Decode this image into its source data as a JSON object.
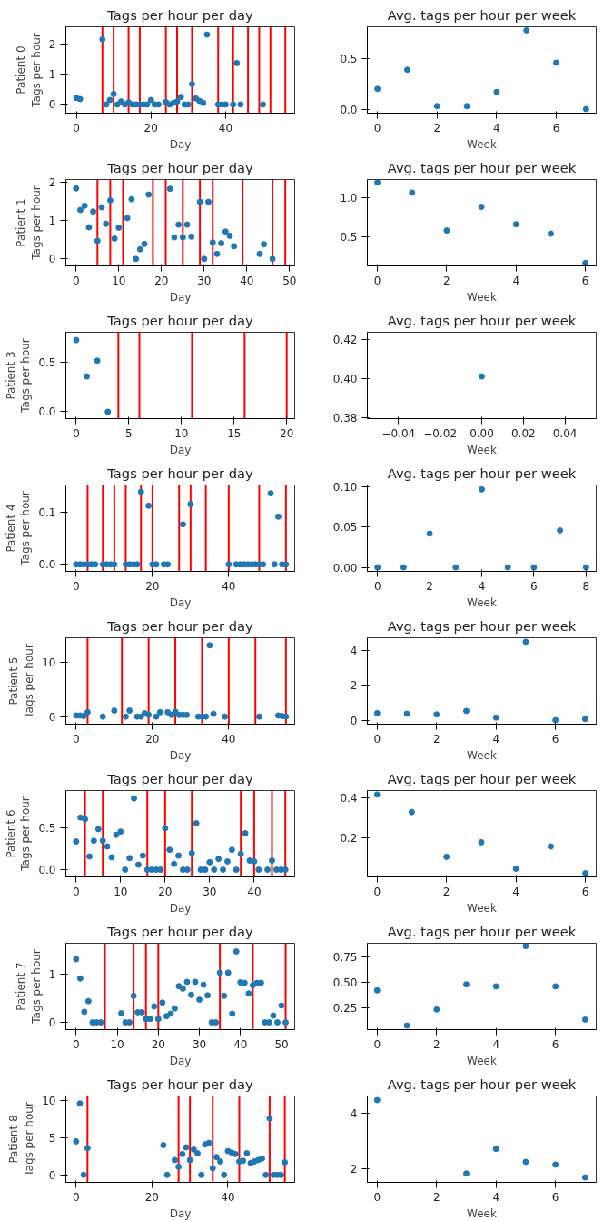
{
  "chart_data": [
    {
      "type": "scatter",
      "title": "Tags per hour per day",
      "xlabel": "Day",
      "ylabel": "Patient 0\nTags per hour",
      "color": "#1f77b4",
      "marker": "circle",
      "xlim": [
        -2.8,
        58.5
      ],
      "ylim": [
        -0.29,
        2.59
      ],
      "xticks": [
        0,
        20,
        40
      ],
      "yticks": [
        0,
        1,
        2
      ],
      "x": [
        0,
        1,
        7,
        8,
        9,
        10,
        11,
        12,
        13,
        14,
        15,
        16,
        17,
        18,
        19,
        20,
        21,
        22,
        24,
        25,
        26,
        27,
        28,
        29,
        30,
        31,
        32,
        33,
        34,
        35,
        38,
        39,
        40,
        42,
        43,
        44,
        50
      ],
      "values": [
        0.22,
        0.18,
        2.17,
        0,
        0.15,
        0.35,
        0,
        0.1,
        0,
        0.07,
        0,
        0,
        0,
        0,
        0,
        0.15,
        0,
        0,
        0.08,
        0,
        0.05,
        0.1,
        0.25,
        0,
        0,
        0.68,
        0.2,
        0.12,
        0.05,
        2.33,
        0,
        0,
        0,
        0,
        1.38,
        0,
        0
      ],
      "ref_lines": [
        {
          "axis": "x",
          "value": 7,
          "color": "#ff0000"
        },
        {
          "axis": "x",
          "value": 10,
          "color": "#ff0000"
        },
        {
          "axis": "x",
          "value": 14,
          "color": "#ff0000"
        },
        {
          "axis": "x",
          "value": 17,
          "color": "#ff0000"
        },
        {
          "axis": "x",
          "value": 24,
          "color": "#ff0000"
        },
        {
          "axis": "x",
          "value": 27,
          "color": "#ff0000"
        },
        {
          "axis": "x",
          "value": 31,
          "color": "#ff0000"
        },
        {
          "axis": "x",
          "value": 38,
          "color": "#ff0000"
        },
        {
          "axis": "x",
          "value": 42,
          "color": "#ff0000"
        },
        {
          "axis": "x",
          "value": 46,
          "color": "#ff0000"
        },
        {
          "axis": "x",
          "value": 49,
          "color": "#ff0000"
        },
        {
          "axis": "x",
          "value": 52,
          "color": "#ff0000"
        },
        {
          "axis": "x",
          "value": 56,
          "color": "#ff0000"
        }
      ]
    },
    {
      "type": "scatter",
      "title": "Avg. tags per hour per week",
      "xlabel": "Week",
      "color": "#1f77b4",
      "marker": "circle",
      "xlim": [
        -0.34,
        7.34
      ],
      "ylim": [
        -0.04,
        0.815
      ],
      "xticks": [
        0,
        2,
        4,
        6
      ],
      "yticks": [
        {
          "value": 0,
          "label": "0.0"
        },
        {
          "value": 0.5,
          "label": "0.5"
        }
      ],
      "x": [
        0,
        1,
        2,
        3,
        4,
        5,
        6,
        7
      ],
      "values": [
        0.2,
        0.39,
        0.03,
        0.03,
        0.17,
        0.78,
        0.46,
        0.0
      ]
    },
    {
      "type": "scatter",
      "title": "Tags per hour per day",
      "xlabel": "Day",
      "ylabel": "Patient 1\nTags per hour",
      "color": "#1f77b4",
      "marker": "circle",
      "xlim": [
        -2.4,
        51.2
      ],
      "ylim": [
        -0.18,
        2.06
      ],
      "xticks": [
        0,
        10,
        20,
        30,
        40,
        50
      ],
      "yticks": [
        0,
        1,
        2
      ],
      "x": [
        0,
        1,
        2,
        3,
        4,
        5,
        6,
        7,
        8,
        9,
        10,
        12,
        13,
        14,
        15,
        16,
        17,
        22,
        23,
        24,
        25,
        26,
        27,
        29,
        30,
        31,
        32,
        33,
        34,
        35,
        36,
        37,
        43,
        44,
        46
      ],
      "values": [
        1.83,
        1.27,
        1.38,
        0.82,
        1.23,
        0.47,
        1.34,
        0.91,
        1.52,
        0.53,
        0.81,
        1.06,
        1.55,
        0,
        0.25,
        0.39,
        1.67,
        1.82,
        0.56,
        0.89,
        0.56,
        0.89,
        0.58,
        1.48,
        0,
        1.48,
        0.43,
        0.13,
        0.41,
        0.71,
        0.6,
        0.33,
        0.13,
        0.38,
        0
      ],
      "ref_lines": [
        {
          "axis": "x",
          "value": 5,
          "color": "#ff0000"
        },
        {
          "axis": "x",
          "value": 8,
          "color": "#ff0000"
        },
        {
          "axis": "x",
          "value": 11,
          "color": "#ff0000"
        },
        {
          "axis": "x",
          "value": 18,
          "color": "#ff0000"
        },
        {
          "axis": "x",
          "value": 21,
          "color": "#ff0000"
        },
        {
          "axis": "x",
          "value": 25,
          "color": "#ff0000"
        },
        {
          "axis": "x",
          "value": 29,
          "color": "#ff0000"
        },
        {
          "axis": "x",
          "value": 32,
          "color": "#ff0000"
        },
        {
          "axis": "x",
          "value": 39,
          "color": "#ff0000"
        },
        {
          "axis": "x",
          "value": 46,
          "color": "#ff0000"
        },
        {
          "axis": "x",
          "value": 49,
          "color": "#ff0000"
        }
      ]
    },
    {
      "type": "scatter",
      "title": "Avg. tags per hour per week",
      "xlabel": "Week",
      "color": "#1f77b4",
      "marker": "circle",
      "xlim": [
        -0.29,
        6.31
      ],
      "ylim": [
        0.132,
        1.226
      ],
      "xticks": [
        0,
        2,
        4,
        6
      ],
      "yticks": [
        {
          "value": 0.5,
          "label": "0.5"
        },
        {
          "value": 1.0,
          "label": "1.0"
        }
      ],
      "x": [
        0,
        1,
        2,
        3,
        4,
        5,
        6
      ],
      "values": [
        1.19,
        1.06,
        0.58,
        0.88,
        0.66,
        0.54,
        0.17
      ]
    },
    {
      "type": "scatter",
      "title": "Tags per hour per day",
      "xlabel": "Day",
      "ylabel": "Patient 3\nTags per hour",
      "color": "#1f77b4",
      "marker": "circle",
      "xlim": [
        -0.99,
        20.76
      ],
      "ylim": [
        -0.07,
        0.81
      ],
      "xticks": [
        0,
        5,
        10,
        15,
        20
      ],
      "yticks": [
        {
          "value": 0,
          "label": "0.0"
        },
        {
          "value": 0.5,
          "label": "0.5"
        }
      ],
      "x": [
        0,
        1,
        2,
        3
      ],
      "values": [
        0.73,
        0.36,
        0.52,
        0
      ],
      "ref_lines": [
        {
          "axis": "x",
          "value": 4,
          "color": "#ff0000"
        },
        {
          "axis": "x",
          "value": 6,
          "color": "#ff0000"
        },
        {
          "axis": "x",
          "value": 11,
          "color": "#ff0000"
        },
        {
          "axis": "x",
          "value": 16,
          "color": "#ff0000"
        },
        {
          "axis": "x",
          "value": 20,
          "color": "#ff0000"
        }
      ]
    },
    {
      "type": "scatter",
      "title": "Avg. tags per hour per week",
      "xlabel": "Week",
      "color": "#1f77b4",
      "marker": "circle",
      "xlim": [
        -0.055,
        0.055
      ],
      "ylim": [
        0.3795,
        0.4235
      ],
      "xticks": [
        {
          "value": -0.04,
          "label": "−0.04"
        },
        {
          "value": -0.02,
          "label": "−0.02"
        },
        {
          "value": 0,
          "label": "0.00"
        },
        {
          "value": 0.02,
          "label": "0.02"
        },
        {
          "value": 0.04,
          "label": "0.04"
        }
      ],
      "yticks": [
        {
          "value": 0.38,
          "label": "0.38"
        },
        {
          "value": 0.4,
          "label": "0.40"
        },
        {
          "value": 0.42,
          "label": "0.42"
        }
      ],
      "x": [
        0
      ],
      "values": [
        0.401
      ]
    },
    {
      "type": "scatter",
      "title": "Tags per hour per day",
      "xlabel": "Day",
      "ylabel": "Patient 4\nTags per hour",
      "color": "#1f77b4",
      "marker": "circle",
      "xlim": [
        -2.7,
        57.3
      ],
      "ylim": [
        -0.0135,
        0.153
      ],
      "xticks": [
        0,
        20,
        40
      ],
      "yticks": [
        {
          "value": 0,
          "label": "0.0"
        },
        {
          "value": 0.1,
          "label": "0.1"
        }
      ],
      "x": [
        0,
        1,
        2,
        3,
        4,
        5,
        7,
        8,
        9,
        10,
        13,
        14,
        15,
        16,
        17,
        19,
        20,
        21,
        23,
        24,
        28,
        30,
        40,
        42,
        43,
        44,
        45,
        46,
        47,
        48,
        49,
        51,
        52,
        53,
        54,
        55
      ],
      "values": [
        0,
        0,
        0,
        0,
        0,
        0,
        0,
        0,
        0,
        0,
        0,
        0,
        0,
        0,
        0.14,
        0.113,
        0,
        0,
        0,
        0,
        0.077,
        0.116,
        0,
        0,
        0,
        0,
        0,
        0,
        0,
        0,
        0,
        0.137,
        0,
        0.092,
        0,
        0
      ],
      "ref_lines": [
        {
          "axis": "x",
          "value": 3,
          "color": "#ff0000"
        },
        {
          "axis": "x",
          "value": 7,
          "color": "#ff0000"
        },
        {
          "axis": "x",
          "value": 10,
          "color": "#ff0000"
        },
        {
          "axis": "x",
          "value": 13,
          "color": "#ff0000"
        },
        {
          "axis": "x",
          "value": 17,
          "color": "#ff0000"
        },
        {
          "axis": "x",
          "value": 20,
          "color": "#ff0000"
        },
        {
          "axis": "x",
          "value": 27,
          "color": "#ff0000"
        },
        {
          "axis": "x",
          "value": 30,
          "color": "#ff0000"
        },
        {
          "axis": "x",
          "value": 34,
          "color": "#ff0000"
        },
        {
          "axis": "x",
          "value": 40,
          "color": "#ff0000"
        },
        {
          "axis": "x",
          "value": 48,
          "color": "#ff0000"
        },
        {
          "axis": "x",
          "value": 55,
          "color": "#ff0000"
        }
      ]
    },
    {
      "type": "scatter",
      "title": "Avg. tags per hour per week",
      "xlabel": "Week",
      "color": "#1f77b4",
      "marker": "circle",
      "xlim": [
        -0.39,
        8.39
      ],
      "ylim": [
        -0.005,
        0.1025
      ],
      "xticks": [
        0,
        2,
        4,
        6,
        8
      ],
      "yticks": [
        {
          "value": 0,
          "label": "0.00"
        },
        {
          "value": 0.05,
          "label": "0.05"
        },
        {
          "value": 0.1,
          "label": "0.10"
        }
      ],
      "x": [
        0,
        1,
        2,
        3,
        4,
        5,
        6,
        7,
        8
      ],
      "values": [
        0,
        0,
        0.042,
        0,
        0.097,
        0,
        0,
        0.046,
        0
      ]
    },
    {
      "type": "scatter",
      "title": "Tags per hour per day",
      "xlabel": "Day",
      "ylabel": "Patient 5\nTags per hour",
      "color": "#1f77b4",
      "marker": "circle",
      "xlim": [
        -2.7,
        57.3
      ],
      "ylim": [
        -1.4,
        14.5
      ],
      "xticks": [
        0,
        20,
        40
      ],
      "yticks": [
        0,
        10
      ],
      "x": [
        0,
        1,
        2,
        3,
        7,
        10,
        13,
        14,
        16,
        17,
        18,
        19,
        21,
        22,
        24,
        25,
        26,
        27,
        28,
        29,
        32,
        33,
        34,
        35,
        36,
        39,
        48,
        53,
        54,
        55
      ],
      "values": [
        0.2,
        0.2,
        0.1,
        0.8,
        0,
        1.1,
        0,
        1.1,
        0,
        0,
        0.6,
        0.3,
        0,
        0.8,
        0.8,
        0.3,
        0.9,
        0.3,
        0.3,
        0.3,
        0,
        0,
        0,
        13.1,
        0.5,
        0,
        0,
        0.2,
        0.1,
        0
      ],
      "ref_lines": [
        {
          "axis": "x",
          "value": 3,
          "color": "#ff0000"
        },
        {
          "axis": "x",
          "value": 12,
          "color": "#ff0000"
        },
        {
          "axis": "x",
          "value": 19,
          "color": "#ff0000"
        },
        {
          "axis": "x",
          "value": 26,
          "color": "#ff0000"
        },
        {
          "axis": "x",
          "value": 33,
          "color": "#ff0000"
        },
        {
          "axis": "x",
          "value": 40,
          "color": "#ff0000"
        },
        {
          "axis": "x",
          "value": 47,
          "color": "#ff0000"
        },
        {
          "axis": "x",
          "value": 55,
          "color": "#ff0000"
        }
      ]
    },
    {
      "type": "scatter",
      "title": "Avg. tags per hour per week",
      "xlabel": "Week",
      "color": "#1f77b4",
      "marker": "circle",
      "xlim": [
        -0.33,
        7.37
      ],
      "ylim": [
        -0.23,
        4.73
      ],
      "xticks": [
        0,
        2,
        4,
        6
      ],
      "yticks": [
        0,
        2,
        4
      ],
      "x": [
        0,
        1,
        2,
        3,
        4,
        5,
        6,
        7
      ],
      "values": [
        0.4,
        0.37,
        0.33,
        0.53,
        0.15,
        4.5,
        0.0,
        0.07
      ]
    },
    {
      "type": "scatter",
      "title": "Tags per hour per day",
      "xlabel": "Day",
      "ylabel": "Patient 6\nTags per hour",
      "color": "#1f77b4",
      "marker": "circle",
      "xlim": [
        -2.3,
        49.1
      ],
      "ylim": [
        -0.087,
        0.955
      ],
      "xticks": [
        0,
        10,
        20,
        30,
        40
      ],
      "yticks": [
        {
          "value": 0,
          "label": "0.0"
        },
        {
          "value": 0.5,
          "label": "0.5"
        }
      ],
      "x": [
        0,
        1,
        2,
        3,
        4,
        5,
        6,
        7,
        8,
        9,
        10,
        11,
        12,
        13,
        14,
        15,
        16,
        17,
        18,
        19,
        20,
        21,
        22,
        23,
        24,
        25,
        26,
        27,
        28,
        29,
        30,
        31,
        32,
        33,
        34,
        35,
        36,
        37,
        38,
        39,
        40,
        41,
        43,
        44,
        45,
        46,
        47
      ],
      "values": [
        0.34,
        0.63,
        0.61,
        0.16,
        0.35,
        0.49,
        0.35,
        0.28,
        0.15,
        0.42,
        0.46,
        0,
        0.14,
        0.86,
        0.06,
        0.17,
        0,
        0,
        0,
        0,
        0.5,
        0.24,
        0.07,
        0.17,
        0,
        0,
        0.2,
        0.56,
        0,
        0,
        0.09,
        0,
        0.13,
        0,
        0.1,
        0.24,
        0,
        0.19,
        0.44,
        0.11,
        0.1,
        0,
        0,
        0.11,
        0,
        0,
        0
      ],
      "ref_lines": [
        {
          "axis": "x",
          "value": 2,
          "color": "#ff0000"
        },
        {
          "axis": "x",
          "value": 6,
          "color": "#ff0000"
        },
        {
          "axis": "x",
          "value": 16,
          "color": "#ff0000"
        },
        {
          "axis": "x",
          "value": 20,
          "color": "#ff0000"
        },
        {
          "axis": "x",
          "value": 26,
          "color": "#ff0000"
        },
        {
          "axis": "x",
          "value": 37,
          "color": "#ff0000"
        },
        {
          "axis": "x",
          "value": 40,
          "color": "#ff0000"
        },
        {
          "axis": "x",
          "value": 44,
          "color": "#ff0000"
        },
        {
          "axis": "x",
          "value": 47,
          "color": "#ff0000"
        }
      ]
    },
    {
      "type": "scatter",
      "title": "Avg. tags per hour per week",
      "xlabel": "Week",
      "color": "#1f77b4",
      "marker": "circle",
      "xlim": [
        -0.28,
        6.31
      ],
      "ylim": [
        0.004,
        0.438
      ],
      "xticks": [
        0,
        2,
        4,
        6
      ],
      "yticks": [
        {
          "value": 0.2,
          "label": "0.2"
        },
        {
          "value": 0.4,
          "label": "0.4"
        }
      ],
      "x": [
        0,
        1,
        2,
        3,
        4,
        5,
        6
      ],
      "values": [
        0.418,
        0.33,
        0.105,
        0.178,
        0.045,
        0.157,
        0.022
      ]
    },
    {
      "type": "scatter",
      "title": "Tags per hour per day",
      "xlabel": "Day",
      "ylabel": "Patient 7\nTags per hour",
      "color": "#1f77b4",
      "marker": "circle",
      "xlim": [
        -2.5,
        53.2
      ],
      "ylim": [
        -0.15,
        1.64
      ],
      "xticks": [
        0,
        10,
        20,
        30,
        40,
        50
      ],
      "yticks": [
        0,
        1
      ],
      "x": [
        0,
        1,
        2,
        3,
        4,
        5,
        6,
        11,
        12,
        13,
        14,
        15,
        16,
        17,
        18,
        19,
        20,
        21,
        22,
        23,
        24,
        25,
        26,
        27,
        28,
        29,
        30,
        31,
        32,
        33,
        34,
        35,
        36,
        37,
        38,
        39,
        40,
        41,
        42,
        43,
        44,
        45,
        46,
        47,
        48,
        49,
        50,
        51
      ],
      "values": [
        1.31,
        0.91,
        0.22,
        0.44,
        0,
        0,
        0,
        0.19,
        0,
        0,
        0.55,
        0.21,
        0.21,
        0.07,
        0.07,
        0.33,
        0.07,
        0.41,
        0.13,
        0.18,
        0.29,
        0.75,
        0.7,
        0.84,
        0.57,
        0.84,
        0.47,
        0.78,
        0.56,
        0,
        0,
        1.03,
        0.55,
        1.03,
        0.18,
        1.47,
        0.83,
        0.82,
        0.6,
        0.77,
        0.82,
        0.82,
        0,
        0,
        0.14,
        0,
        0.35,
        0
      ],
      "ref_lines": [
        {
          "axis": "x",
          "value": 7,
          "color": "#ff0000"
        },
        {
          "axis": "x",
          "value": 14,
          "color": "#ff0000"
        },
        {
          "axis": "x",
          "value": 17,
          "color": "#ff0000"
        },
        {
          "axis": "x",
          "value": 20,
          "color": "#ff0000"
        },
        {
          "axis": "x",
          "value": 35,
          "color": "#ff0000"
        },
        {
          "axis": "x",
          "value": 43,
          "color": "#ff0000"
        },
        {
          "axis": "x",
          "value": 51,
          "color": "#ff0000"
        }
      ]
    },
    {
      "type": "scatter",
      "title": "Avg. tags per hour per week",
      "xlabel": "Week",
      "color": "#1f77b4",
      "marker": "circle",
      "xlim": [
        -0.33,
        7.37
      ],
      "ylim": [
        0.03,
        0.888
      ],
      "xticks": [
        0,
        2,
        4,
        6
      ],
      "yticks": [
        {
          "value": 0.25,
          "label": "0.25"
        },
        {
          "value": 0.5,
          "label": "0.50"
        },
        {
          "value": 0.75,
          "label": "0.75"
        }
      ],
      "x": [
        0,
        1,
        2,
        3,
        4,
        5,
        6,
        7
      ],
      "values": [
        0.42,
        0.07,
        0.23,
        0.48,
        0.46,
        0.86,
        0.46,
        0.13
      ]
    },
    {
      "type": "scatter",
      "title": "Tags per hour per day",
      "xlabel": "Day",
      "ylabel": "Patient 8\nTags per hour",
      "color": "#1f77b4",
      "marker": "circle",
      "xlim": [
        -2.7,
        57.6
      ],
      "ylim": [
        -1.0,
        10.6
      ],
      "xticks": [
        0,
        20,
        40
      ],
      "yticks": [
        0,
        5,
        10
      ],
      "x": [
        0,
        1,
        2,
        3,
        23,
        24,
        26,
        27,
        28,
        29,
        30,
        31,
        32,
        33,
        34,
        35,
        36,
        37,
        38,
        39,
        40,
        41,
        42,
        43,
        44,
        45,
        46,
        47,
        48,
        49,
        50,
        51,
        52,
        53,
        54,
        55
      ],
      "values": [
        4.5,
        9.6,
        0,
        3.6,
        4.0,
        0,
        2.0,
        1.1,
        2.8,
        3.7,
        2.0,
        3.4,
        2.9,
        0,
        4.1,
        4.3,
        0.9,
        2.4,
        1.8,
        0,
        3.2,
        3.0,
        2.8,
        1.8,
        1.9,
        2.9,
        1.6,
        1.8,
        2.0,
        2.2,
        0,
        7.6,
        0,
        0,
        0,
        1.7
      ],
      "ref_lines": [
        {
          "axis": "x",
          "value": 3,
          "color": "#ff0000"
        },
        {
          "axis": "x",
          "value": 27,
          "color": "#ff0000"
        },
        {
          "axis": "x",
          "value": 30,
          "color": "#ff0000"
        },
        {
          "axis": "x",
          "value": 36,
          "color": "#ff0000"
        },
        {
          "axis": "x",
          "value": 43,
          "color": "#ff0000"
        },
        {
          "axis": "x",
          "value": 51,
          "color": "#ff0000"
        },
        {
          "axis": "x",
          "value": 55,
          "color": "#ff0000"
        }
      ]
    },
    {
      "type": "scatter",
      "title": "Avg. tags per hour per week",
      "xlabel": "Week",
      "color": "#1f77b4",
      "marker": "circle",
      "xlim": [
        -0.33,
        7.37
      ],
      "ylim": [
        1.5,
        4.62
      ],
      "xticks": [
        0,
        2,
        4,
        6
      ],
      "yticks": [
        2,
        4
      ],
      "x": [
        0,
        3,
        4,
        5,
        6,
        7
      ],
      "values": [
        4.47,
        1.82,
        2.71,
        2.24,
        2.14,
        1.68
      ]
    }
  ]
}
